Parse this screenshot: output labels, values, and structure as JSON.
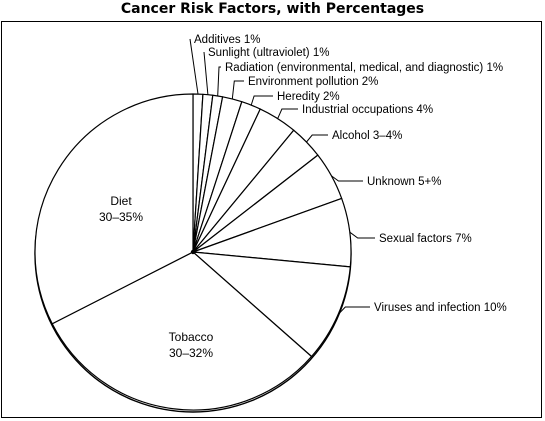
{
  "chart_data": {
    "type": "pie",
    "title": "Cancer Risk Factors, with Percentages",
    "slices": [
      {
        "name": "Additives",
        "value_label": "1%",
        "label": "Additives 1%"
      },
      {
        "name": "Sunlight (ultraviolet)",
        "value_label": "1%",
        "label": "Sunlight (ultraviolet) 1%"
      },
      {
        "name": "Radiation (environmental, medical, and diagnostic)",
        "value_label": "1%",
        "label": "Radiation (environmental, medical, and diagnostic) 1%"
      },
      {
        "name": "Environment pollution",
        "value_label": "2%",
        "label": "Environment pollution 2%"
      },
      {
        "name": "Heredity",
        "value_label": "2%",
        "label": "Heredity 2%"
      },
      {
        "name": "Industrial occupations",
        "value_label": "4%",
        "label": "Industrial occupations 4%"
      },
      {
        "name": "Alcohol",
        "value_label": "3–4%",
        "label": "Alcohol 3–4%"
      },
      {
        "name": "Unknown",
        "value_label": "5+%",
        "label": "Unknown 5+%"
      },
      {
        "name": "Sexual factors",
        "value_label": "7%",
        "label": "Sexual factors 7%"
      },
      {
        "name": "Viruses and infection",
        "value_label": "10%",
        "label": "Viruses and infection 10%"
      },
      {
        "name": "Tobacco",
        "value_label": "30–32%",
        "label_line1": "Tobacco",
        "label_line2": "30–32%"
      },
      {
        "name": "Diet",
        "value_label": "30–35%",
        "label_line1": "Diet",
        "label_line2": "30–35%"
      }
    ],
    "values": [
      1,
      1,
      1,
      2,
      2,
      4,
      3.5,
      5,
      7,
      10,
      31,
      32.5
    ],
    "start": "top (12 o'clock)",
    "direction": "clockwise",
    "legend": "none (callout labels)"
  }
}
